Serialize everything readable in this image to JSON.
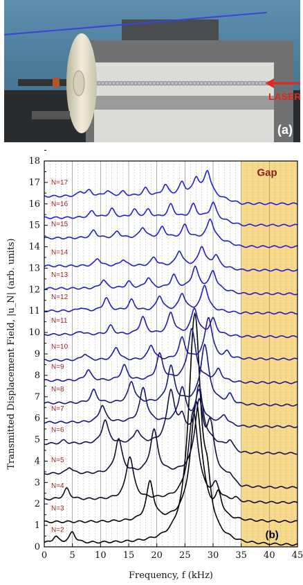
{
  "panel_a": {
    "label": "(a)",
    "laser_label": "LASER"
  },
  "chart_data": {
    "type": "line",
    "panel_label": "(b)",
    "xlabel": "Frequency, f (kHz)",
    "ylabel": "Transmitted Displacement Field, |u_N| (arb. units)",
    "xlim": [
      0,
      45
    ],
    "ylim": [
      0,
      18
    ],
    "xticks": [
      0,
      5,
      10,
      15,
      20,
      25,
      30,
      35,
      40,
      45
    ],
    "yticks": [
      0,
      1,
      2,
      3,
      4,
      5,
      6,
      7,
      8,
      9,
      10,
      11,
      12,
      13,
      14,
      15,
      16,
      17,
      18
    ],
    "grid": "vertical dotted lines",
    "band_gap": {
      "label": "Gap",
      "from": 35,
      "to": 45,
      "color": "#f8d98a"
    },
    "series": [
      {
        "name": "N=2",
        "baseline": 0.15,
        "peaks": [
          [
            2,
            0.3
          ],
          [
            5,
            0.5
          ],
          [
            26.5,
            6.0
          ],
          [
            27,
            5.0
          ],
          [
            29,
            1.5
          ]
        ],
        "end": 0.05,
        "color": "#000000"
      },
      {
        "name": "N=3",
        "baseline": 1.15,
        "peaks": [
          [
            18.8,
            1.8
          ],
          [
            27.0,
            5.6
          ],
          [
            31.0,
            1.0
          ]
        ],
        "end": 1.15,
        "color": "#000000"
      },
      {
        "name": "N=4",
        "baseline": 2.2,
        "peaks": [
          [
            4.0,
            0.5
          ],
          [
            15.2,
            2.0
          ],
          [
            26.5,
            4.1
          ],
          [
            30.5,
            0.6
          ],
          [
            34,
            0.15
          ]
        ],
        "end": 2.05,
        "color": "#0a0a1e"
      },
      {
        "name": "N=5",
        "baseline": 3.4,
        "peaks": [
          [
            4.5,
            0.3
          ],
          [
            13.2,
            1.6
          ],
          [
            19.5,
            2.0
          ],
          [
            27.5,
            3.2
          ],
          [
            29.5,
            2.0
          ],
          [
            33,
            0.3
          ]
        ],
        "end": 2.75,
        "color": "#0d0d36"
      },
      {
        "name": "N=6",
        "baseline": 4.8,
        "peaks": [
          [
            3.5,
            0.15
          ],
          [
            10.8,
            1.1
          ],
          [
            16.5,
            0.6
          ],
          [
            22.5,
            2.4
          ],
          [
            24.5,
            1.0
          ],
          [
            27.5,
            2.6
          ],
          [
            33,
            0.4
          ]
        ],
        "end": 4.35,
        "color": "#111150"
      },
      {
        "name": "N=7",
        "baseline": 5.8,
        "peaks": [
          [
            10.3,
            0.8
          ],
          [
            17.6,
            1.6
          ],
          [
            24.5,
            1.6
          ],
          [
            27.5,
            1.4
          ],
          [
            32,
            0.4
          ]
        ],
        "end": 5.6,
        "color": "#141468"
      },
      {
        "name": "N=8",
        "baseline": 6.7,
        "peaks": [
          [
            8.8,
            0.6
          ],
          [
            15.5,
            1.0
          ],
          [
            22.5,
            1.7
          ],
          [
            28.5,
            2.7
          ],
          [
            33,
            0.4
          ]
        ],
        "end": 6.6,
        "color": "#161680"
      },
      {
        "name": "N=9",
        "baseline": 7.75,
        "peaks": [
          [
            7.8,
            0.5
          ],
          [
            14.2,
            0.7
          ],
          [
            20.5,
            1.2
          ],
          [
            26.2,
            2.4
          ],
          [
            31,
            0.5
          ]
        ],
        "end": 7.65,
        "color": "#181894"
      },
      {
        "name": "N=10",
        "baseline": 8.7,
        "peaks": [
          [
            7.2,
            0.3
          ],
          [
            12.8,
            0.6
          ],
          [
            19.0,
            0.7
          ],
          [
            24.5,
            1.0
          ],
          [
            29.2,
            2.0
          ],
          [
            32.5,
            0.3
          ]
        ],
        "end": 8.75,
        "color": "#1a1aa6"
      },
      {
        "name": "N=11",
        "baseline": 9.9,
        "peaks": [
          [
            6.5,
            0.15
          ],
          [
            11.8,
            0.4
          ],
          [
            17.5,
            0.8
          ],
          [
            22.5,
            1.0
          ],
          [
            26.7,
            1.2
          ],
          [
            30,
            0.7
          ]
        ],
        "end": 9.8,
        "color": "#1b1bb4"
      },
      {
        "name": "N=12",
        "baseline": 11.0,
        "peaks": [
          [
            6.5,
            0.15
          ],
          [
            11.0,
            0.6
          ],
          [
            15.5,
            0.5
          ],
          [
            20.5,
            0.7
          ],
          [
            24.5,
            0.8
          ],
          [
            28.5,
            1.2
          ]
        ],
        "end": 10.9,
        "color": "#1c1cc0"
      },
      {
        "name": "N=13",
        "baseline": 12.05,
        "peaks": [
          [
            10.5,
            0.4
          ],
          [
            15,
            0.3
          ],
          [
            18.5,
            0.5
          ],
          [
            23,
            0.6
          ],
          [
            26.8,
            1.0
          ],
          [
            30,
            0.8
          ]
        ],
        "end": 11.8,
        "color": "#1c1cc8"
      },
      {
        "name": "N=14",
        "baseline": 13.1,
        "peaks": [
          [
            9.5,
            0.35
          ],
          [
            14,
            0.3
          ],
          [
            19.5,
            0.4
          ],
          [
            24,
            0.7
          ],
          [
            28,
            0.9
          ],
          [
            30.5,
            0.5
          ]
        ],
        "end": 12.9,
        "color": "#1d1dd0"
      },
      {
        "name": "N=15",
        "baseline": 14.4,
        "peaks": [
          [
            8.8,
            0.35
          ],
          [
            13,
            0.3
          ],
          [
            17.5,
            0.5
          ],
          [
            21,
            0.5
          ],
          [
            25,
            0.6
          ],
          [
            29.5,
            0.9
          ]
        ],
        "end": 14.0,
        "color": "#1d1dd6"
      },
      {
        "name": "N=16",
        "baseline": 15.35,
        "peaks": [
          [
            8.5,
            0.3
          ],
          [
            12,
            0.4
          ],
          [
            16,
            0.35
          ],
          [
            18.5,
            0.35
          ],
          [
            22.5,
            0.6
          ],
          [
            26.5,
            0.6
          ],
          [
            30,
            0.7
          ]
        ],
        "end": 15.0,
        "color": "#1d1ddb"
      },
      {
        "name": "N=17",
        "baseline": 16.35,
        "peaks": [
          [
            6.5,
            0.2
          ],
          [
            8,
            0.25
          ],
          [
            11.2,
            0.25
          ],
          [
            14,
            0.2
          ],
          [
            18,
            0.35
          ],
          [
            21.5,
            0.5
          ],
          [
            24.5,
            0.6
          ],
          [
            27,
            0.8
          ],
          [
            29,
            1.15
          ]
        ],
        "end": 16.0,
        "color": "#1d1de0"
      }
    ]
  }
}
